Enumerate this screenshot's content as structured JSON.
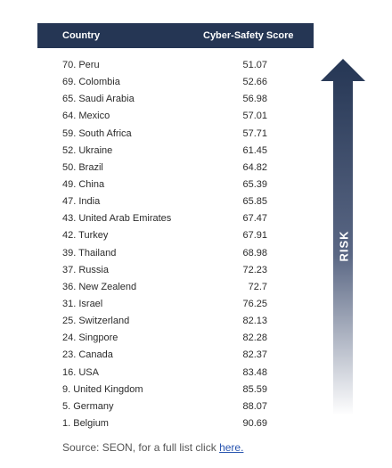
{
  "header": {
    "country_label": "Country",
    "score_label": "Cyber-Safety Score"
  },
  "arrow_label": "RISK",
  "source": {
    "prefix": "Source: SEON, for a full list click ",
    "link_text": "here."
  },
  "colors": {
    "header_bg": "#253654",
    "arrow_top": "#253654",
    "arrow_bottom": "#ffffff"
  },
  "chart_data": {
    "type": "table",
    "columns": [
      "Country",
      "Cyber-Safety Score"
    ],
    "rows": [
      {
        "country": "70. Peru",
        "score": "51.07"
      },
      {
        "country": "69. Colombia",
        "score": "52.66"
      },
      {
        "country": "65. Saudi Arabia",
        "score": "56.98"
      },
      {
        "country": "64. Mexico",
        "score": "57.01"
      },
      {
        "country": "59. South Africa",
        "score": "57.71"
      },
      {
        "country": "52. Ukraine",
        "score": "61.45"
      },
      {
        "country": "50. Brazil",
        "score": "64.82"
      },
      {
        "country": "49. China",
        "score": "65.39"
      },
      {
        "country": "47. India",
        "score": "65.85"
      },
      {
        "country": "43. United Arab Emirates",
        "score": "67.47"
      },
      {
        "country": "42. Turkey",
        "score": "67.91"
      },
      {
        "country": "39. Thailand",
        "score": "68.98"
      },
      {
        "country": "37. Russia",
        "score": "72.23"
      },
      {
        "country": "36. New Zealend",
        "score": "72.7"
      },
      {
        "country": "31. Israel",
        "score": "76.25"
      },
      {
        "country": "25. Switzerland",
        "score": "82.13"
      },
      {
        "country": "24. Singpore",
        "score": "82.28"
      },
      {
        "country": "23. Canada",
        "score": "82.37"
      },
      {
        "country": "16. USA",
        "score": "83.48"
      },
      {
        "country": "9. United Kingdom",
        "score": "85.59"
      },
      {
        "country": "5. Germany",
        "score": "88.07"
      },
      {
        "country": "1. Belgium",
        "score": "90.69"
      }
    ]
  }
}
